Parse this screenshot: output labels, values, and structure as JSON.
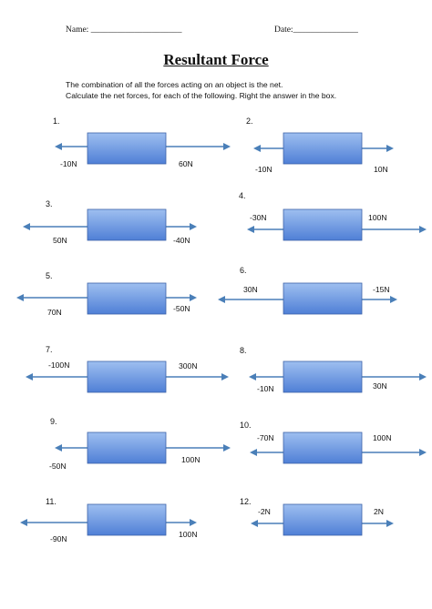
{
  "header": {
    "name_label": "Name: _____________________",
    "date_label": "Date:_______________"
  },
  "title": "Resultant Force",
  "instructions": [
    "The combination of all the forces acting on an object is the net.",
    "Calculate the net forces, for each of the following.  Right the answer in the box."
  ],
  "colors": {
    "arrow": "#4a7fb8",
    "box_top": "#9ebff0",
    "box_bottom": "#4f7fd6",
    "box_border": "#3d62a8"
  },
  "problems": [
    {
      "number": "1.",
      "left_force": "-10N",
      "right_force": "60N"
    },
    {
      "number": "2.",
      "left_force": "-10N",
      "right_force": "10N"
    },
    {
      "number": "3.",
      "left_force": "50N",
      "right_force": "-40N"
    },
    {
      "number": "4.",
      "left_force": "-30N",
      "right_force": "100N"
    },
    {
      "number": "5.",
      "left_force": "70N",
      "right_force": "-50N"
    },
    {
      "number": "6.",
      "left_force": "30N",
      "right_force": "-15N"
    },
    {
      "number": "7.",
      "left_force": "-100N",
      "right_force": "300N"
    },
    {
      "number": "8.",
      "left_force": "-10N",
      "right_force": "30N"
    },
    {
      "number": "9.",
      "left_force": "-50N",
      "right_force": "100N"
    },
    {
      "number": "10.",
      "left_force": "-70N",
      "right_force": "100N"
    },
    {
      "number": "11.",
      "left_force": "-90N",
      "right_force": "100N"
    },
    {
      "number": "12.",
      "left_force": "-2N",
      "right_force": "2N"
    }
  ]
}
